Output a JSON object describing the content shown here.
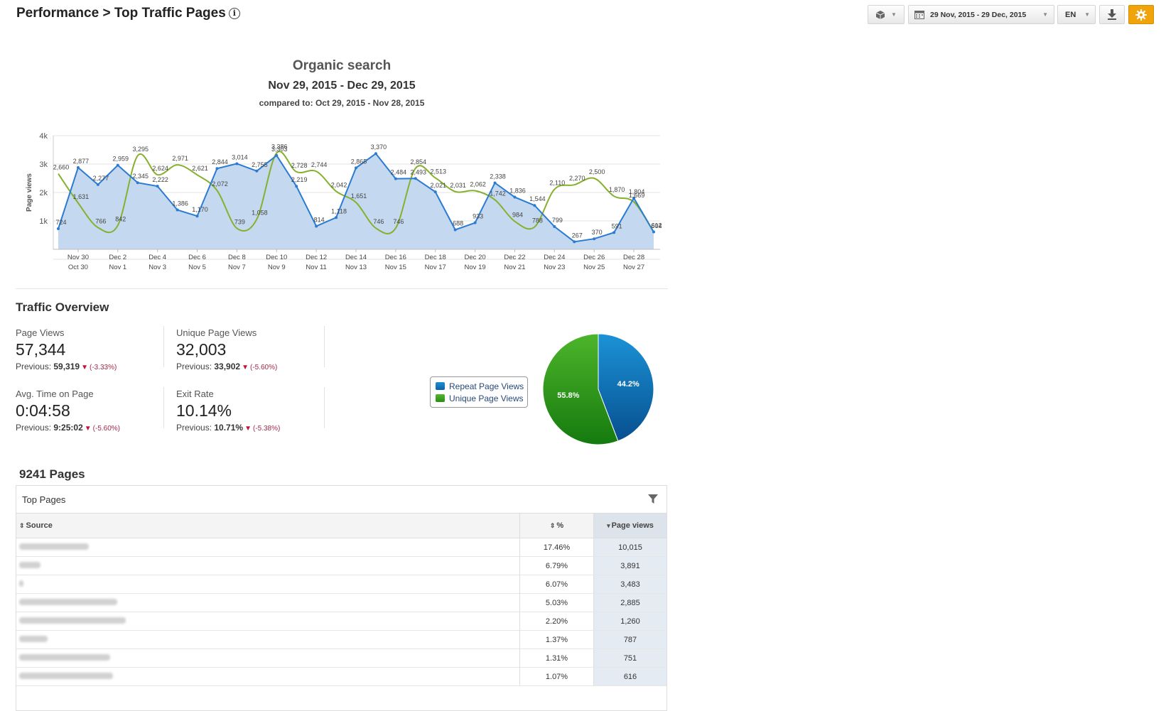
{
  "header": {
    "title": "Performance > Top Traffic Pages",
    "info_icon": "i"
  },
  "toolbar": {
    "cube_icon": "cube-icon",
    "date_range": "29 Nov, 2015 - 29 Dec, 2015",
    "language": "EN",
    "download_icon": "download-icon",
    "settings_icon": "gear-icon",
    "settings_color": "#f0a30a"
  },
  "chart": {
    "title": "Organic search",
    "subtitle": "Nov 29, 2015 - Dec 29, 2015",
    "compare": "compared to: Oct 29, 2015 - Nov 28, 2015"
  },
  "chart_data": {
    "type": "area",
    "ylabel": "Page views",
    "ylim": [
      0,
      4000
    ],
    "yticks": [
      {
        "v": 1000,
        "label": "1k"
      },
      {
        "v": 2000,
        "label": "2k"
      },
      {
        "v": 3000,
        "label": "3k"
      },
      {
        "v": 4000,
        "label": "4k"
      }
    ],
    "x_ticks_primary": [
      "Nov 30",
      "Dec 2",
      "Dec 4",
      "Dec 6",
      "Dec 8",
      "Dec 10",
      "Dec 12",
      "Dec 14",
      "Dec 16",
      "Dec 18",
      "Dec 20",
      "Dec 22",
      "Dec 24",
      "Dec 26",
      "Dec 28"
    ],
    "x_ticks_secondary": [
      "Oct 30",
      "Nov 1",
      "Nov 3",
      "Nov 5",
      "Nov 7",
      "Nov 9",
      "Nov 11",
      "Nov 13",
      "Nov 15",
      "Nov 17",
      "Nov 19",
      "Nov 21",
      "Nov 23",
      "Nov 25",
      "Nov 27"
    ],
    "grid": true,
    "series": [
      {
        "color": "#2b7bd1",
        "fill": "#c4d9ef",
        "values": [
          724,
          2877,
          2277,
          2959,
          2345,
          2222,
          1386,
          1170,
          2844,
          3014,
          2755,
          3303,
          2219,
          814,
          1118,
          2865,
          3370,
          2484,
          2493,
          2021,
          688,
          933,
          2338,
          1836,
          1544,
          799,
          267,
          370,
          591,
          1804,
          612
        ]
      },
      {
        "color": "#86b02e",
        "values": [
          2660,
          1631,
          766,
          842,
          3295,
          2624,
          2971,
          2621,
          2072,
          739,
          1058,
          3386,
          2728,
          2744,
          2042,
          1651,
          746,
          746,
          2854,
          2513,
          2031,
          2062,
          1742,
          984,
          788,
          2110,
          2270,
          2500,
          1870,
          1669,
          604
        ]
      }
    ]
  },
  "overview": {
    "title": "Traffic Overview",
    "metrics": [
      {
        "label": "Page Views",
        "value": "57,344",
        "prev_label": "Previous:",
        "prev": "59,319",
        "change": "(-3.33%)"
      },
      {
        "label": "Unique Page Views",
        "value": "32,003",
        "prev_label": "Previous:",
        "prev": "33,902",
        "change": "(-5.60%)"
      },
      {
        "label": "Avg. Time on Page",
        "value": "0:04:58",
        "prev_label": "Previous:",
        "prev": "9:25:02",
        "change": "(-5.60%)"
      },
      {
        "label": "Exit Rate",
        "value": "10.14%",
        "prev_label": "Previous:",
        "prev": "10.71%",
        "change": "(-5.38%)"
      }
    ],
    "legend": [
      "Repeat Page Views",
      "Unique Page Views"
    ],
    "pie_colors": [
      "#0a6cb0",
      "#3e9a20"
    ]
  },
  "pie_data": {
    "type": "pie",
    "slices": [
      {
        "name": "Repeat Page Views",
        "value": 44.2,
        "label": "44.2%"
      },
      {
        "name": "Unique Page Views",
        "value": 55.8,
        "label": "55.8%"
      }
    ]
  },
  "pages": {
    "title": "9241 Pages",
    "table_title": "Top Pages",
    "columns": [
      "Source",
      "%",
      "Page views"
    ],
    "rows": [
      {
        "pct": "17.46%",
        "views": "10,015"
      },
      {
        "pct": "6.79%",
        "views": "3,891"
      },
      {
        "pct": "6.07%",
        "views": "3,483"
      },
      {
        "pct": "5.03%",
        "views": "2,885"
      },
      {
        "pct": "2.20%",
        "views": "1,260"
      },
      {
        "pct": "1.37%",
        "views": "787"
      },
      {
        "pct": "1.31%",
        "views": "751"
      },
      {
        "pct": "1.07%",
        "views": "616"
      }
    ]
  }
}
